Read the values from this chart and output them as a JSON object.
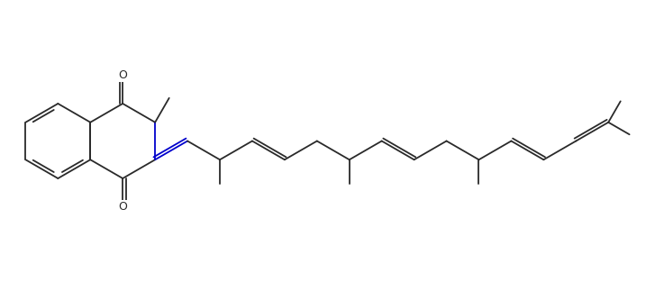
{
  "background": "#ffffff",
  "bond_color": "#2a2a2a",
  "blue_color": "#0000cc",
  "figsize": [
    7.27,
    3.13
  ],
  "dpi": 100,
  "lw": 1.3,
  "bl": 1.0
}
